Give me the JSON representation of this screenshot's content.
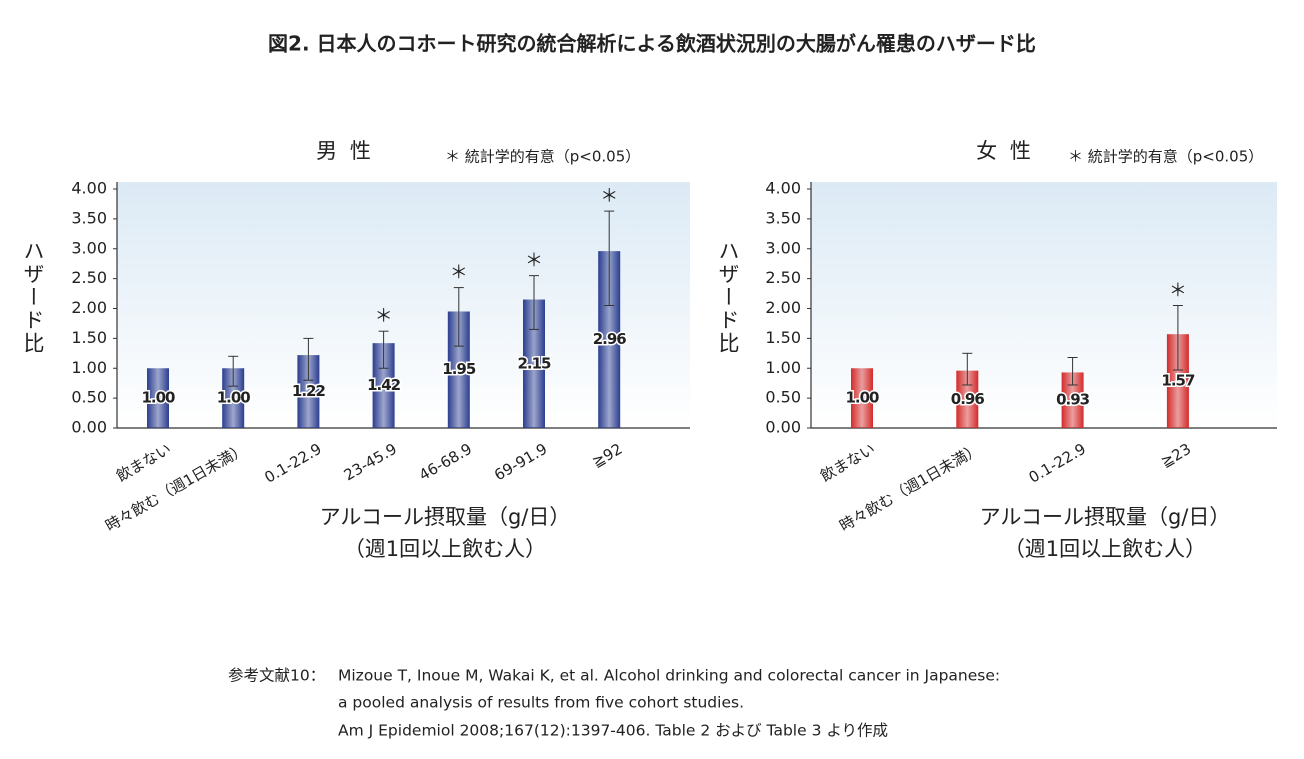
{
  "title": "図2. 日本人のコホート研究の統合解析による飲酒状況別の大腸がん罹患のハザード比",
  "chart_data": [
    {
      "type": "bar",
      "title": "男 性",
      "note": "＊ 統計学的有意（p<0.05）",
      "ylabel": "ハザード比",
      "xlabel": [
        "アルコール摂取量（g/日）",
        "（週1回以上飲む人）"
      ],
      "categories": [
        "飲まない",
        "時々飲む（週1日未満）",
        "0.1-22.9",
        "23-45.9",
        "46-68.9",
        "69-91.9",
        "≧92"
      ],
      "values": [
        1,
        1,
        1.22,
        1.42,
        1.95,
        2.15,
        2.96
      ],
      "value_labels": [
        "1.00",
        "1.00",
        "1.22",
        "1.42",
        "1.95",
        "2.15",
        "2.96"
      ],
      "error_low": [
        null,
        0.7,
        0.8,
        1.0,
        1.37,
        1.65,
        2.05
      ],
      "error_high": [
        null,
        1.2,
        1.5,
        1.62,
        2.35,
        2.55,
        3.63
      ],
      "significant": [
        false,
        false,
        false,
        true,
        true,
        true,
        true
      ],
      "significance_mark": "＊",
      "color": "#2b3d8f",
      "ylim": [
        0,
        4
      ],
      "yticks": [
        {
          "value": 0,
          "label": "0.00"
        },
        {
          "value": 0.5,
          "label": "0.50"
        },
        {
          "value": 1,
          "label": "1.00"
        },
        {
          "value": 1.5,
          "label": "1.50"
        },
        {
          "value": 2,
          "label": "2.00"
        },
        {
          "value": 2.5,
          "label": "2.50"
        },
        {
          "value": 3,
          "label": "3.00"
        },
        {
          "value": 3.5,
          "label": "3.50"
        },
        {
          "value": 4,
          "label": "4.00"
        }
      ]
    },
    {
      "type": "bar",
      "title": "女 性",
      "note": "＊ 統計学的有意（p<0.05）",
      "ylabel": "ハザード比",
      "xlabel": [
        "アルコール摂取量（g/日）",
        "（週1回以上飲む人）"
      ],
      "categories": [
        "飲まない",
        "時々飲む（週1日未満）",
        "0.1-22.9",
        "≧23"
      ],
      "values": [
        1,
        0.96,
        0.93,
        1.57
      ],
      "value_labels": [
        "1.00",
        "0.96",
        "0.93",
        "1.57"
      ],
      "error_low": [
        null,
        0.72,
        0.72,
        0.97
      ],
      "error_high": [
        null,
        1.25,
        1.18,
        2.05
      ],
      "significant": [
        false,
        false,
        false,
        true
      ],
      "significance_mark": "＊",
      "color": "#d42a2a",
      "ylim": [
        0,
        4
      ],
      "yticks": [
        {
          "value": 0,
          "label": "0.00"
        },
        {
          "value": 0.5,
          "label": "0.50"
        },
        {
          "value": 1,
          "label": "1.00"
        },
        {
          "value": 1.5,
          "label": "1.50"
        },
        {
          "value": 2,
          "label": "2.00"
        },
        {
          "value": 2.5,
          "label": "2.50"
        },
        {
          "value": 3,
          "label": "3.00"
        },
        {
          "value": 3.5,
          "label": "3.50"
        },
        {
          "value": 4,
          "label": "4.00"
        }
      ]
    }
  ],
  "reference": {
    "label": "参考文献10：",
    "lines": [
      "Mizoue T, Inoue M, Wakai K, et al. Alcohol drinking and colorectal cancer in Japanese:",
      "a pooled analysis of results from five cohort studies.",
      "Am J Epidemiol 2008;167(12):1397-406. Table 2 および Table 3 より作成"
    ]
  }
}
